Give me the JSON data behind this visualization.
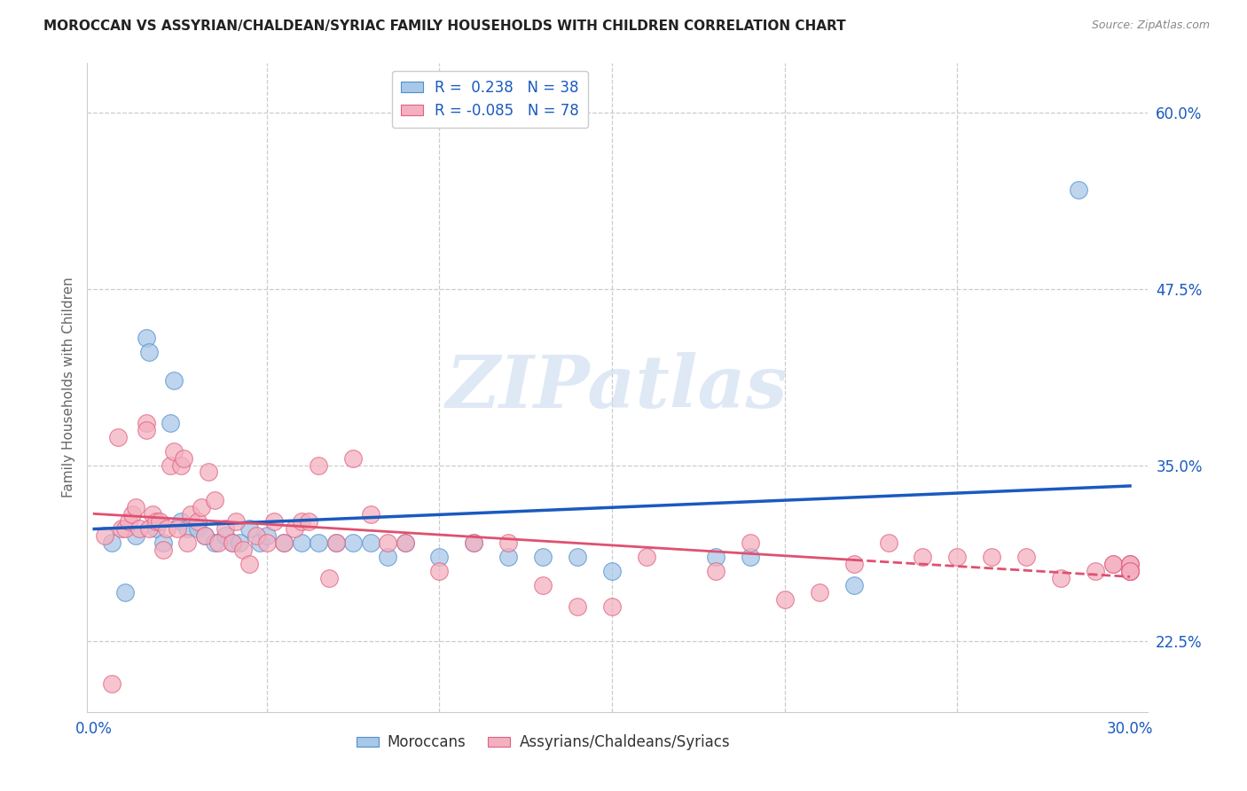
{
  "title": "MOROCCAN VS ASSYRIAN/CHALDEAN/SYRIAC FAMILY HOUSEHOLDS WITH CHILDREN CORRELATION CHART",
  "source": "Source: ZipAtlas.com",
  "ylabel": "Family Households with Children",
  "ytick_vals": [
    0.225,
    0.35,
    0.475,
    0.6
  ],
  "xtick_vals": [
    0.0,
    0.05,
    0.1,
    0.15,
    0.2,
    0.25,
    0.3
  ],
  "xlim": [
    -0.002,
    0.305
  ],
  "ylim": [
    0.175,
    0.635
  ],
  "moroccan_color": "#a8c8e8",
  "assyrian_color": "#f4b0c0",
  "moroccan_edge_color": "#5090d0",
  "assyrian_edge_color": "#e06080",
  "moroccan_line_color": "#1a5abf",
  "assyrian_line_color": "#e05070",
  "watermark": "ZIPatlas",
  "moroccan_x": [
    0.005,
    0.009,
    0.012,
    0.015,
    0.016,
    0.018,
    0.02,
    0.022,
    0.023,
    0.025,
    0.027,
    0.03,
    0.032,
    0.035,
    0.038,
    0.04,
    0.042,
    0.045,
    0.048,
    0.05,
    0.055,
    0.06,
    0.065,
    0.07,
    0.075,
    0.08,
    0.085,
    0.09,
    0.1,
    0.11,
    0.12,
    0.13,
    0.14,
    0.15,
    0.18,
    0.19,
    0.22,
    0.285
  ],
  "moroccan_y": [
    0.295,
    0.26,
    0.3,
    0.44,
    0.43,
    0.305,
    0.295,
    0.38,
    0.41,
    0.31,
    0.305,
    0.305,
    0.3,
    0.295,
    0.3,
    0.295,
    0.295,
    0.305,
    0.295,
    0.3,
    0.295,
    0.295,
    0.295,
    0.295,
    0.295,
    0.295,
    0.285,
    0.295,
    0.285,
    0.295,
    0.285,
    0.285,
    0.285,
    0.275,
    0.285,
    0.285,
    0.265,
    0.545
  ],
  "assyrian_x": [
    0.003,
    0.005,
    0.007,
    0.008,
    0.009,
    0.01,
    0.011,
    0.012,
    0.013,
    0.015,
    0.015,
    0.016,
    0.017,
    0.018,
    0.019,
    0.02,
    0.021,
    0.022,
    0.023,
    0.024,
    0.025,
    0.026,
    0.027,
    0.028,
    0.03,
    0.031,
    0.032,
    0.033,
    0.035,
    0.036,
    0.038,
    0.04,
    0.041,
    0.043,
    0.045,
    0.047,
    0.05,
    0.052,
    0.055,
    0.058,
    0.06,
    0.062,
    0.065,
    0.068,
    0.07,
    0.075,
    0.08,
    0.085,
    0.09,
    0.1,
    0.11,
    0.12,
    0.13,
    0.14,
    0.15,
    0.16,
    0.18,
    0.19,
    0.2,
    0.21,
    0.22,
    0.23,
    0.24,
    0.25,
    0.26,
    0.27,
    0.28,
    0.29,
    0.295,
    0.295,
    0.3,
    0.3,
    0.3,
    0.3,
    0.3,
    0.3,
    0.3,
    0.3
  ],
  "assyrian_y": [
    0.3,
    0.195,
    0.37,
    0.305,
    0.305,
    0.31,
    0.315,
    0.32,
    0.305,
    0.38,
    0.375,
    0.305,
    0.315,
    0.31,
    0.31,
    0.29,
    0.305,
    0.35,
    0.36,
    0.305,
    0.35,
    0.355,
    0.295,
    0.315,
    0.31,
    0.32,
    0.3,
    0.345,
    0.325,
    0.295,
    0.305,
    0.295,
    0.31,
    0.29,
    0.28,
    0.3,
    0.295,
    0.31,
    0.295,
    0.305,
    0.31,
    0.31,
    0.35,
    0.27,
    0.295,
    0.355,
    0.315,
    0.295,
    0.295,
    0.275,
    0.295,
    0.295,
    0.265,
    0.25,
    0.25,
    0.285,
    0.275,
    0.295,
    0.255,
    0.26,
    0.28,
    0.295,
    0.285,
    0.285,
    0.285,
    0.285,
    0.27,
    0.275,
    0.28,
    0.28,
    0.28,
    0.275,
    0.275,
    0.275,
    0.28,
    0.28,
    0.275,
    0.275
  ]
}
